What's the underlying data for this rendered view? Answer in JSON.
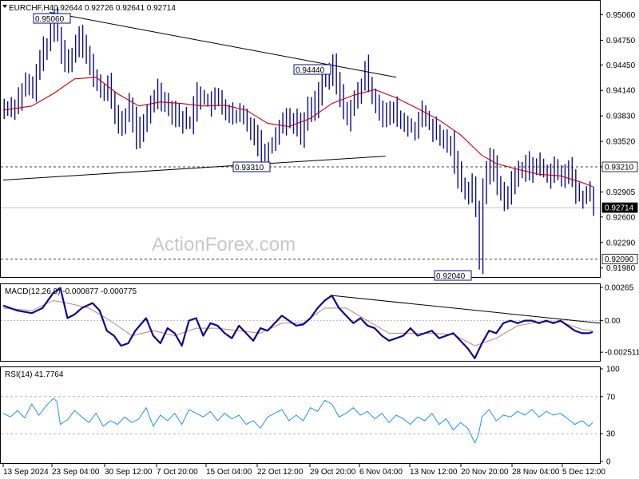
{
  "chart_data": [
    {
      "type": "candlestick",
      "title": "EURCHF,H4",
      "ohlc_text": "0.92644 0.92726 0.92641 0.92714",
      "ylim": [
        0.9187,
        0.9523
      ],
      "yticks": [
        "0.95060",
        "0.94750",
        "0.94450",
        "0.94140",
        "0.93830",
        "0.93520",
        "0.93210",
        "0.92905",
        "0.92600",
        "0.92290",
        "0.91980"
      ],
      "level_labels": {
        "upper": "0.93210",
        "current": "0.92714",
        "lower": "0.92090"
      },
      "annotations": [
        "0.95060",
        "0.94440",
        "0.93310",
        "0.92040"
      ],
      "watermark": "ActionForex.com",
      "colors": {
        "price": "#0a0a8c",
        "ema": "#cc0000",
        "trendline": "#000000"
      },
      "x_labels": [
        "13 Sep 2024",
        "23 Sep 04:00",
        "30 Sep 12:00",
        "7 Oct 20:00",
        "15 Oct 04:00",
        "22 Oct 12:00",
        "29 Oct 20:00",
        "6 Nov 04:00",
        "13 Nov 12:00",
        "20 Nov 20:00",
        "28 Nov 04:00",
        "5 Dec 12:00"
      ],
      "close_series": [
        [
          0,
          0.9392
        ],
        [
          3,
          0.9396
        ],
        [
          6,
          0.9422
        ],
        [
          8,
          0.9412
        ],
        [
          10,
          0.9455
        ],
        [
          12,
          0.947
        ],
        [
          14,
          0.9501
        ],
        [
          15,
          0.9483
        ],
        [
          17,
          0.9445
        ],
        [
          19,
          0.9458
        ],
        [
          21,
          0.9485
        ],
        [
          23,
          0.9455
        ],
        [
          25,
          0.9432
        ],
        [
          27,
          0.9412
        ],
        [
          29,
          0.9418
        ],
        [
          31,
          0.9385
        ],
        [
          33,
          0.937
        ],
        [
          35,
          0.9396
        ],
        [
          37,
          0.936
        ],
        [
          39,
          0.937
        ],
        [
          41,
          0.9398
        ],
        [
          43,
          0.9414
        ],
        [
          45,
          0.9398
        ],
        [
          47,
          0.939
        ],
        [
          50,
          0.9377
        ],
        [
          52,
          0.9375
        ],
        [
          54,
          0.941
        ],
        [
          56,
          0.9403
        ],
        [
          58,
          0.9398
        ],
        [
          60,
          0.9405
        ],
        [
          62,
          0.9388
        ],
        [
          64,
          0.938
        ],
        [
          66,
          0.9385
        ],
        [
          68,
          0.9375
        ],
        [
          70,
          0.9362
        ],
        [
          72,
          0.934
        ],
        [
          73,
          0.9338
        ],
        [
          75,
          0.935
        ],
        [
          77,
          0.9372
        ],
        [
          79,
          0.938
        ],
        [
          81,
          0.9378
        ],
        [
          83,
          0.9362
        ],
        [
          85,
          0.939
        ],
        [
          87,
          0.9398
        ],
        [
          89,
          0.9425
        ],
        [
          91,
          0.943
        ],
        [
          92,
          0.9444
        ],
        [
          94,
          0.9405
        ],
        [
          96,
          0.9382
        ],
        [
          98,
          0.94
        ],
        [
          100,
          0.942
        ],
        [
          101,
          0.944
        ],
        [
          103,
          0.9408
        ],
        [
          105,
          0.9392
        ],
        [
          107,
          0.938
        ],
        [
          109,
          0.939
        ],
        [
          111,
          0.9375
        ],
        [
          113,
          0.937
        ],
        [
          115,
          0.9368
        ],
        [
          117,
          0.9385
        ],
        [
          119,
          0.9372
        ],
        [
          121,
          0.936
        ],
        [
          123,
          0.9352
        ],
        [
          125,
          0.9348
        ],
        [
          127,
          0.9312
        ],
        [
          129,
          0.929
        ],
        [
          131,
          0.93
        ],
        [
          132,
          0.927
        ],
        [
          133,
          0.9204
        ],
        [
          134,
          0.929
        ],
        [
          136,
          0.9335
        ],
        [
          138,
          0.93
        ],
        [
          140,
          0.928
        ],
        [
          142,
          0.93
        ],
        [
          144,
          0.9315
        ],
        [
          146,
          0.9325
        ],
        [
          148,
          0.9318
        ],
        [
          150,
          0.9322
        ],
        [
          152,
          0.9312
        ],
        [
          154,
          0.9318
        ],
        [
          156,
          0.9305
        ],
        [
          158,
          0.932
        ],
        [
          160,
          0.929
        ],
        [
          162,
          0.9282
        ],
        [
          164,
          0.929
        ],
        [
          165,
          0.9271
        ]
      ],
      "ema_series": [
        [
          0,
          0.939
        ],
        [
          8,
          0.9395
        ],
        [
          14,
          0.941
        ],
        [
          20,
          0.9428
        ],
        [
          26,
          0.943
        ],
        [
          32,
          0.941
        ],
        [
          38,
          0.9395
        ],
        [
          44,
          0.94
        ],
        [
          50,
          0.9398
        ],
        [
          56,
          0.9395
        ],
        [
          62,
          0.9396
        ],
        [
          68,
          0.939
        ],
        [
          74,
          0.9374
        ],
        [
          80,
          0.937
        ],
        [
          86,
          0.938
        ],
        [
          92,
          0.9398
        ],
        [
          98,
          0.9408
        ],
        [
          104,
          0.9415
        ],
        [
          110,
          0.9405
        ],
        [
          116,
          0.9392
        ],
        [
          122,
          0.9378
        ],
        [
          128,
          0.936
        ],
        [
          134,
          0.9335
        ],
        [
          138,
          0.9325
        ],
        [
          144,
          0.9318
        ],
        [
          150,
          0.9312
        ],
        [
          156,
          0.931
        ],
        [
          162,
          0.9302
        ],
        [
          165,
          0.9297
        ]
      ],
      "trendlines": [
        {
          "from": [
            13,
            0.9509
          ],
          "to": [
            110,
            0.943
          ]
        },
        {
          "from": [
            0,
            0.9305
          ],
          "to": [
            107,
            0.9334
          ]
        }
      ],
      "hlines": [
        0.9321,
        0.9209
      ],
      "current_price": 0.92714
    },
    {
      "type": "line",
      "title": "MACD(12,26,9) -0.000877 -0.000775",
      "ylim": [
        -0.0032,
        0.0029
      ],
      "yticks": [
        "0.00265",
        "0.00",
        "-0.002511"
      ],
      "macd_series": [
        [
          0,
          0.0012
        ],
        [
          4,
          0.0008
        ],
        [
          8,
          0.0006
        ],
        [
          11,
          0.001
        ],
        [
          14,
          0.0022
        ],
        [
          16,
          0.0026
        ],
        [
          18,
          0.0002
        ],
        [
          20,
          0.0005
        ],
        [
          22,
          0.001
        ],
        [
          25,
          0.0014
        ],
        [
          27,
          0.0008
        ],
        [
          29,
          -0.0008
        ],
        [
          31,
          -0.0012
        ],
        [
          33,
          -0.002
        ],
        [
          35,
          -0.0018
        ],
        [
          37,
          -0.0008
        ],
        [
          40,
          0.0002
        ],
        [
          42,
          -0.0012
        ],
        [
          44,
          -0.0018
        ],
        [
          46,
          -0.0006
        ],
        [
          48,
          -0.001
        ],
        [
          50,
          -0.002
        ],
        [
          52,
          0.0
        ],
        [
          54,
          0.0002
        ],
        [
          56,
          -0.0012
        ],
        [
          58,
          -0.0002
        ],
        [
          60,
          -0.0004
        ],
        [
          62,
          -0.001
        ],
        [
          64,
          -0.0014
        ],
        [
          66,
          -0.0004
        ],
        [
          68,
          -0.001
        ],
        [
          70,
          -0.0016
        ],
        [
          72,
          -0.0006
        ],
        [
          74,
          -0.0008
        ],
        [
          76,
          -0.0002
        ],
        [
          78,
          0.0004
        ],
        [
          80,
          0.0
        ],
        [
          82,
          -0.0004
        ],
        [
          84,
          -0.0003
        ],
        [
          86,
          0.0002
        ],
        [
          88,
          0.001
        ],
        [
          90,
          0.0016
        ],
        [
          92,
          0.002
        ],
        [
          94,
          0.001
        ],
        [
          96,
          0.0004
        ],
        [
          98,
          -0.0002
        ],
        [
          100,
          0.0002
        ],
        [
          102,
          -0.0004
        ],
        [
          104,
          -0.0006
        ],
        [
          106,
          -0.0012
        ],
        [
          108,
          -0.0016
        ],
        [
          110,
          -0.0014
        ],
        [
          112,
          -0.0012
        ],
        [
          114,
          -0.0006
        ],
        [
          116,
          -0.0012
        ],
        [
          118,
          -0.001
        ],
        [
          120,
          -0.0008
        ],
        [
          122,
          -0.0014
        ],
        [
          124,
          -0.0012
        ],
        [
          126,
          -0.001
        ],
        [
          128,
          -0.0016
        ],
        [
          130,
          -0.0022
        ],
        [
          132,
          -0.003
        ],
        [
          134,
          -0.0018
        ],
        [
          136,
          -0.0008
        ],
        [
          138,
          -0.001
        ],
        [
          140,
          -0.0002
        ],
        [
          142,
          0.0
        ],
        [
          144,
          -0.0002
        ],
        [
          146,
          0.0
        ],
        [
          148,
          0.0
        ],
        [
          150,
          -0.0002
        ],
        [
          152,
          0.0
        ],
        [
          154,
          -0.0002
        ],
        [
          156,
          0.0
        ],
        [
          158,
          -0.0004
        ],
        [
          160,
          -0.0008
        ],
        [
          162,
          -0.001
        ],
        [
          164,
          -0.001
        ],
        [
          165,
          -0.0009
        ]
      ],
      "signal_series": [
        [
          0,
          0.001
        ],
        [
          8,
          0.0008
        ],
        [
          14,
          0.0016
        ],
        [
          18,
          0.0014
        ],
        [
          24,
          0.001
        ],
        [
          30,
          0.0
        ],
        [
          36,
          -0.0012
        ],
        [
          42,
          -0.0008
        ],
        [
          48,
          -0.0012
        ],
        [
          54,
          -0.0006
        ],
        [
          60,
          -0.0006
        ],
        [
          66,
          -0.0008
        ],
        [
          72,
          -0.001
        ],
        [
          78,
          -0.0002
        ],
        [
          84,
          -0.0002
        ],
        [
          90,
          0.001
        ],
        [
          96,
          0.001
        ],
        [
          102,
          0.0
        ],
        [
          108,
          -0.001
        ],
        [
          114,
          -0.001
        ],
        [
          120,
          -0.001
        ],
        [
          126,
          -0.0011
        ],
        [
          132,
          -0.002
        ],
        [
          138,
          -0.0014
        ],
        [
          144,
          -0.0004
        ],
        [
          150,
          -0.0001
        ],
        [
          156,
          -0.0001
        ],
        [
          162,
          -0.0007
        ],
        [
          165,
          -0.0008
        ]
      ],
      "trendline": {
        "from": [
          92,
          0.002
        ],
        "to": [
          168,
          -0.0002
        ]
      }
    },
    {
      "type": "line",
      "title": "RSI(14) 41.7764",
      "ylim": [
        0,
        100
      ],
      "yticks": [
        "100",
        "70",
        "30",
        "0"
      ],
      "levels": [
        70,
        30
      ],
      "rsi_series": [
        [
          0,
          52
        ],
        [
          2,
          48
        ],
        [
          4,
          55
        ],
        [
          6,
          47
        ],
        [
          8,
          62
        ],
        [
          10,
          50
        ],
        [
          12,
          60
        ],
        [
          14,
          68
        ],
        [
          15,
          65
        ],
        [
          16,
          40
        ],
        [
          18,
          45
        ],
        [
          20,
          55
        ],
        [
          22,
          48
        ],
        [
          24,
          42
        ],
        [
          26,
          52
        ],
        [
          28,
          38
        ],
        [
          30,
          44
        ],
        [
          32,
          40
        ],
        [
          34,
          48
        ],
        [
          36,
          42
        ],
        [
          38,
          46
        ],
        [
          40,
          58
        ],
        [
          42,
          38
        ],
        [
          44,
          50
        ],
        [
          46,
          44
        ],
        [
          48,
          52
        ],
        [
          50,
          40
        ],
        [
          52,
          56
        ],
        [
          54,
          52
        ],
        [
          56,
          48
        ],
        [
          58,
          54
        ],
        [
          60,
          44
        ],
        [
          62,
          52
        ],
        [
          64,
          46
        ],
        [
          66,
          50
        ],
        [
          68,
          40
        ],
        [
          70,
          44
        ],
        [
          72,
          36
        ],
        [
          74,
          48
        ],
        [
          76,
          52
        ],
        [
          78,
          56
        ],
        [
          80,
          44
        ],
        [
          82,
          50
        ],
        [
          84,
          44
        ],
        [
          86,
          58
        ],
        [
          88,
          54
        ],
        [
          90,
          66
        ],
        [
          92,
          62
        ],
        [
          94,
          48
        ],
        [
          96,
          52
        ],
        [
          98,
          58
        ],
        [
          100,
          50
        ],
        [
          102,
          54
        ],
        [
          104,
          46
        ],
        [
          106,
          52
        ],
        [
          108,
          42
        ],
        [
          110,
          50
        ],
        [
          112,
          46
        ],
        [
          114,
          40
        ],
        [
          116,
          48
        ],
        [
          118,
          44
        ],
        [
          120,
          52
        ],
        [
          122,
          40
        ],
        [
          124,
          46
        ],
        [
          126,
          34
        ],
        [
          128,
          42
        ],
        [
          130,
          36
        ],
        [
          132,
          20
        ],
        [
          133,
          28
        ],
        [
          134,
          48
        ],
        [
          136,
          56
        ],
        [
          138,
          44
        ],
        [
          140,
          50
        ],
        [
          142,
          48
        ],
        [
          144,
          54
        ],
        [
          146,
          50
        ],
        [
          148,
          56
        ],
        [
          150,
          48
        ],
        [
          152,
          54
        ],
        [
          154,
          50
        ],
        [
          156,
          52
        ],
        [
          158,
          46
        ],
        [
          160,
          40
        ],
        [
          162,
          44
        ],
        [
          164,
          38
        ],
        [
          165,
          42
        ]
      ]
    }
  ]
}
